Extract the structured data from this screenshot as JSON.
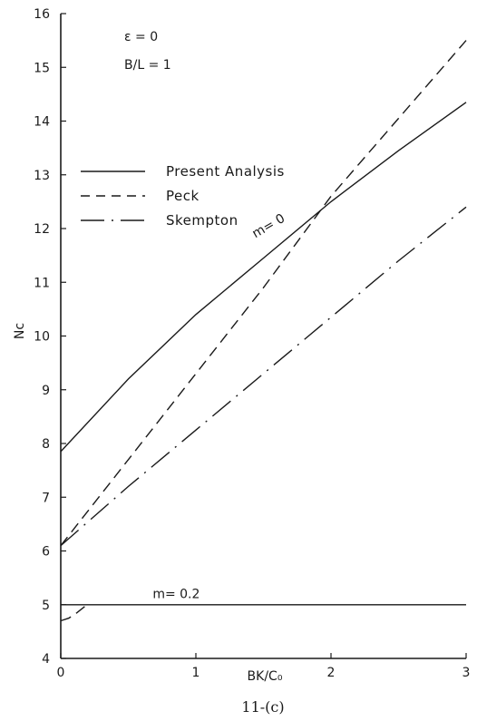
{
  "chart_data": {
    "type": "line",
    "title": "",
    "annotations": [
      "ε = 0",
      "B/L = 1"
    ],
    "xlabel": "BK/C₀",
    "ylabel": "Nc",
    "xlim": [
      0,
      3
    ],
    "ylim": [
      4,
      16
    ],
    "x_ticks": [
      "0",
      "1",
      "2",
      "3"
    ],
    "y_ticks": [
      "4",
      "5",
      "6",
      "7",
      "8",
      "9",
      "10",
      "11",
      "12",
      "13",
      "14",
      "15",
      "16"
    ],
    "legend": {
      "position": "upper-left",
      "entries": [
        {
          "label": "Present Analysis",
          "style": "solid"
        },
        {
          "label": "Peck",
          "style": "dashed"
        },
        {
          "label": "Skempton",
          "style": "dashdot"
        }
      ]
    },
    "series": [
      {
        "label": "m= 0",
        "style": "solid",
        "points": [
          [
            0,
            7.85
          ],
          [
            0.5,
            9.2
          ],
          [
            1,
            10.4
          ],
          [
            1.5,
            11.45
          ],
          [
            2,
            12.5
          ],
          [
            2.5,
            13.45
          ],
          [
            3,
            14.35
          ]
        ]
      },
      {
        "style": "dashed",
        "points": [
          [
            0,
            6.1
          ],
          [
            0.5,
            7.7
          ],
          [
            1,
            9.3
          ],
          [
            1.5,
            10.9
          ],
          [
            2,
            12.6
          ],
          [
            2.5,
            14.05
          ],
          [
            3,
            15.5
          ]
        ]
      },
      {
        "style": "dashdot",
        "points": [
          [
            0,
            6.1
          ],
          [
            0.5,
            7.2
          ],
          [
            1,
            8.25
          ],
          [
            1.5,
            9.3
          ],
          [
            2,
            10.35
          ],
          [
            2.5,
            11.4
          ],
          [
            3,
            12.4
          ]
        ]
      },
      {
        "label": "m= 0.2",
        "style": "solid",
        "points": [
          [
            0,
            5.0
          ],
          [
            0.5,
            5.0
          ],
          [
            1,
            5.0
          ],
          [
            1.5,
            5.0
          ],
          [
            2,
            5.0
          ],
          [
            2.5,
            5.0
          ],
          [
            3,
            5.0
          ]
        ]
      },
      {
        "style": "dashed",
        "points": [
          [
            0,
            4.7
          ],
          [
            0.06,
            4.75
          ],
          [
            0.12,
            4.85
          ],
          [
            0.18,
            4.97
          ]
        ]
      }
    ],
    "caption": "11-(c)"
  }
}
